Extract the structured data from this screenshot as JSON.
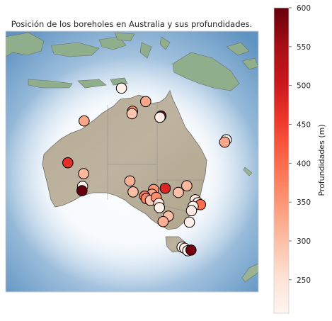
{
  "chart_data": {
    "type": "scatter",
    "title": "Posición de los boreholes en Australia y sus profundidades.",
    "colorbar": {
      "label": "Profundidades (m)",
      "range": [
        207,
        600
      ],
      "ticks": [
        "600",
        "550",
        "500",
        "450",
        "400",
        "350",
        "300",
        "250"
      ],
      "tick_values": [
        600,
        550,
        500,
        450,
        400,
        350,
        300,
        250
      ],
      "colormap": "Reds",
      "colors": [
        "#fff5f0",
        "#fee0d2",
        "#fcbba1",
        "#fc9272",
        "#fb6a4a",
        "#ef3b2c",
        "#cb181d",
        "#a50f15",
        "#67000d"
      ]
    },
    "lon_range": [
      109,
      157
    ],
    "lat_range": [
      -46,
      -3
    ],
    "points": [
      {
        "lon": 131.0,
        "lat": -12.4,
        "depth": 220
      },
      {
        "lon": 135.6,
        "lat": -14.6,
        "depth": 330
      },
      {
        "lon": 133.1,
        "lat": -16.2,
        "depth": 360
      },
      {
        "lon": 133.0,
        "lat": -16.6,
        "depth": 290
      },
      {
        "lon": 138.5,
        "lat": -17.0,
        "depth": 570
      },
      {
        "lon": 138.3,
        "lat": -17.2,
        "depth": 225
      },
      {
        "lon": 123.9,
        "lat": -17.8,
        "depth": 330
      },
      {
        "lon": 150.9,
        "lat": -20.9,
        "depth": 210
      },
      {
        "lon": 150.6,
        "lat": -21.3,
        "depth": 330
      },
      {
        "lon": 120.8,
        "lat": -24.7,
        "depth": 470
      },
      {
        "lon": 123.8,
        "lat": -26.5,
        "depth": 310
      },
      {
        "lon": 123.6,
        "lat": -28.6,
        "depth": 215
      },
      {
        "lon": 123.5,
        "lat": -29.3,
        "depth": 600
      },
      {
        "lon": 132.6,
        "lat": -27.7,
        "depth": 320
      },
      {
        "lon": 139.3,
        "lat": -28.9,
        "depth": 480
      },
      {
        "lon": 137.1,
        "lat": -29.1,
        "depth": 350
      },
      {
        "lon": 143.4,
        "lat": -28.5,
        "depth": 310
      },
      {
        "lon": 133.2,
        "lat": -29.5,
        "depth": 300
      },
      {
        "lon": 136.8,
        "lat": -29.9,
        "depth": 330
      },
      {
        "lon": 135.4,
        "lat": -30.2,
        "depth": 390
      },
      {
        "lon": 135.7,
        "lat": -30.6,
        "depth": 370
      },
      {
        "lon": 136.5,
        "lat": -30.9,
        "depth": 290
      },
      {
        "lon": 137.6,
        "lat": -30.4,
        "depth": 360
      },
      {
        "lon": 141.8,
        "lat": -29.6,
        "depth": 300
      },
      {
        "lon": 145.0,
        "lat": -30.8,
        "depth": 230
      },
      {
        "lon": 145.5,
        "lat": -31.3,
        "depth": 240
      },
      {
        "lon": 146.0,
        "lat": -31.6,
        "depth": 400
      },
      {
        "lon": 144.6,
        "lat": -31.9,
        "depth": 215
      },
      {
        "lon": 144.3,
        "lat": -32.6,
        "depth": 225
      },
      {
        "lon": 138.1,
        "lat": -31.4,
        "depth": 250
      },
      {
        "lon": 138.2,
        "lat": -32.1,
        "depth": 215
      },
      {
        "lon": 139.9,
        "lat": -33.5,
        "depth": 300
      },
      {
        "lon": 138.9,
        "lat": -34.4,
        "depth": 320
      },
      {
        "lon": 143.9,
        "lat": -34.5,
        "depth": 220
      },
      {
        "lon": 142.5,
        "lat": -38.6,
        "depth": 215
      },
      {
        "lon": 143.0,
        "lat": -38.8,
        "depth": 225
      },
      {
        "lon": 143.6,
        "lat": -39.2,
        "depth": 215
      },
      {
        "lon": 144.2,
        "lat": -39.1,
        "depth": 590
      }
    ]
  }
}
